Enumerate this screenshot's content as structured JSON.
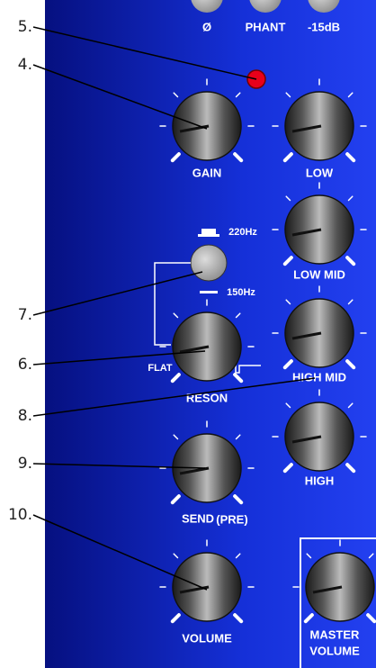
{
  "callouts": [
    "5.",
    "4.",
    "7.",
    "6.",
    "8.",
    "9.",
    "10."
  ],
  "buttons": [
    "Ø",
    "PHANT",
    "-15dB"
  ],
  "knobs": [
    "GAIN",
    "LOW",
    "LOW MID",
    "RESON",
    "HIGH MID",
    "SEND",
    "HIGH",
    "VOLUME"
  ],
  "send_note": "(PRE)",
  "master": [
    "MASTER",
    "VOLUME"
  ],
  "reson_switch": {
    "high": "220Hz",
    "low": "150Hz",
    "flat": "FLAT"
  }
}
